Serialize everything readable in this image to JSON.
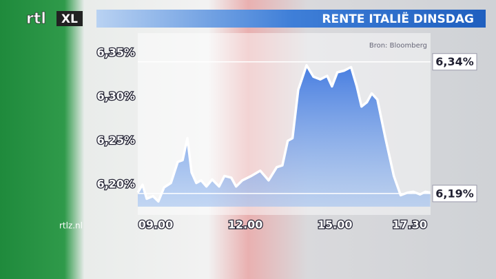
{
  "logo": [
    "rtl",
    "XL"
  ],
  "website": "rtlz.nl",
  "chart_data": {
    "type": "line",
    "title": "RENTE ITALIË DINSDAG",
    "source": "Bron: Bloomberg",
    "x": [
      8.4,
      8.56,
      8.7,
      8.91,
      9.09,
      9.28,
      9.51,
      9.74,
      9.9,
      10.06,
      10.2,
      10.36,
      10.52,
      10.7,
      10.89,
      11.12,
      11.3,
      11.53,
      11.69,
      11.9,
      12.2,
      12.5,
      12.78,
      13.05,
      13.24,
      13.42,
      13.58,
      13.77,
      14.05,
      14.28,
      14.51,
      14.74,
      14.9,
      15.08,
      15.31,
      15.54,
      15.73,
      15.89,
      16.07,
      16.23,
      16.42,
      16.69,
      16.97,
      17.2,
      17.43,
      17.62,
      17.85,
      18.03,
      18.19
    ],
    "series": [
      {
        "color": "#ffffff",
        "fill": "#5b8de6",
        "values": [
          6.191,
          6.2,
          6.184,
          6.187,
          6.181,
          6.197,
          6.202,
          6.226,
          6.228,
          6.253,
          6.214,
          6.202,
          6.205,
          6.198,
          6.206,
          6.198,
          6.21,
          6.208,
          6.198,
          6.205,
          6.21,
          6.216,
          6.205,
          6.22,
          6.222,
          6.25,
          6.253,
          6.308,
          6.336,
          6.323,
          6.32,
          6.324,
          6.312,
          6.328,
          6.33,
          6.334,
          6.312,
          6.289,
          6.294,
          6.304,
          6.297,
          6.253,
          6.21,
          6.188,
          6.191,
          6.192,
          6.189,
          6.192,
          6.191
        ]
      }
    ],
    "xlim": [
      8.4,
      18.2
    ],
    "xticks": [
      {
        "value": 9,
        "label": "09.00"
      },
      {
        "value": 12,
        "label": "12.00"
      },
      {
        "value": 15,
        "label": "15.00"
      },
      {
        "value": 17.5,
        "label": "17.30"
      }
    ],
    "ylim": [
      6.175,
      6.35
    ],
    "yticks": [
      {
        "value": 6.2,
        "label": "6,20%"
      },
      {
        "value": 6.25,
        "label": "6,25%"
      },
      {
        "value": 6.3,
        "label": "6,30%"
      },
      {
        "value": 6.35,
        "label": "6,35%"
      }
    ],
    "reference_lines": [
      {
        "value": 6.34,
        "label": "6,34%"
      },
      {
        "value": 6.19,
        "label": "6,19%"
      }
    ]
  }
}
